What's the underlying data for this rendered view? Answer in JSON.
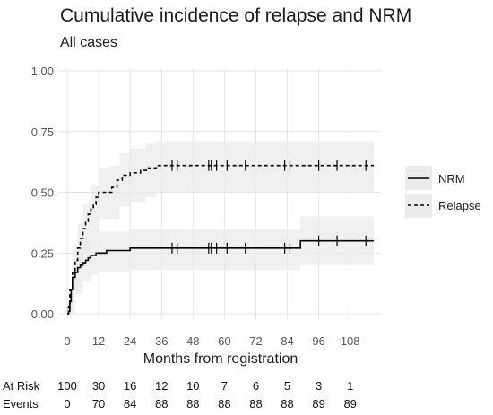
{
  "chart_data": {
    "type": "line",
    "title": "Cumulative incidence of relapse and NRM",
    "subtitle": "All cases",
    "xlabel": "Months from registration",
    "ylabel": "",
    "xlim": [
      0,
      117
    ],
    "ylim": [
      0,
      1
    ],
    "x_ticks": [
      "0",
      "12",
      "24",
      "36",
      "48",
      "60",
      "72",
      "84",
      "96",
      "108"
    ],
    "y_ticks": [
      "0.00",
      "0.25",
      "0.50",
      "0.75",
      "1.00"
    ],
    "grid": true,
    "legend_position": "right",
    "series": [
      {
        "name": "NRM",
        "linestyle": "solid",
        "color": "#000000",
        "band_color": "#ebebeb",
        "steps": [
          [
            0,
            0
          ],
          [
            0.5,
            0.01
          ],
          [
            1,
            0.05
          ],
          [
            1.5,
            0.1
          ],
          [
            2,
            0.15
          ],
          [
            3,
            0.17
          ],
          [
            4,
            0.19
          ],
          [
            5,
            0.2
          ],
          [
            6,
            0.21
          ],
          [
            7,
            0.22
          ],
          [
            8,
            0.23
          ],
          [
            9,
            0.24
          ],
          [
            11,
            0.25
          ],
          [
            15,
            0.26
          ],
          [
            24,
            0.27
          ],
          [
            88,
            0.27
          ],
          [
            89,
            0.3
          ],
          [
            117,
            0.3
          ]
        ],
        "band": [
          [
            0,
            0,
            0
          ],
          [
            1,
            0,
            0.1
          ],
          [
            3,
            0.08,
            0.26
          ],
          [
            6,
            0.13,
            0.31
          ],
          [
            9,
            0.16,
            0.33
          ],
          [
            12,
            0.17,
            0.34
          ],
          [
            24,
            0.18,
            0.35
          ],
          [
            88,
            0.18,
            0.35
          ],
          [
            89,
            0.2,
            0.4
          ],
          [
            117,
            0.2,
            0.4
          ]
        ],
        "censor_x": [
          40,
          42,
          54,
          55,
          57,
          61,
          68,
          83,
          85,
          96,
          103,
          114
        ]
      },
      {
        "name": "Relapse",
        "linestyle": "dashed",
        "color": "#000000",
        "band_color": "#ebebeb",
        "steps": [
          [
            0,
            0
          ],
          [
            0.5,
            0.03
          ],
          [
            1,
            0.1
          ],
          [
            2,
            0.17
          ],
          [
            3,
            0.22
          ],
          [
            4,
            0.27
          ],
          [
            5,
            0.31
          ],
          [
            6,
            0.35
          ],
          [
            7,
            0.38
          ],
          [
            8,
            0.41
          ],
          [
            9,
            0.43
          ],
          [
            10,
            0.45
          ],
          [
            11,
            0.48
          ],
          [
            12,
            0.5
          ],
          [
            16,
            0.5
          ],
          [
            17,
            0.52
          ],
          [
            19,
            0.55
          ],
          [
            21,
            0.57
          ],
          [
            24,
            0.58
          ],
          [
            28,
            0.59
          ],
          [
            31,
            0.6
          ],
          [
            34,
            0.61
          ],
          [
            117,
            0.61
          ]
        ],
        "band": [
          [
            0,
            0,
            0.05
          ],
          [
            2,
            0.1,
            0.28
          ],
          [
            4,
            0.18,
            0.37
          ],
          [
            6,
            0.26,
            0.45
          ],
          [
            9,
            0.33,
            0.53
          ],
          [
            12,
            0.39,
            0.6
          ],
          [
            16,
            0.39,
            0.61
          ],
          [
            20,
            0.44,
            0.66
          ],
          [
            24,
            0.46,
            0.68
          ],
          [
            30,
            0.48,
            0.7
          ],
          [
            34,
            0.5,
            0.71
          ],
          [
            117,
            0.5,
            0.71
          ]
        ],
        "censor_x": [
          40,
          42,
          54,
          55,
          57,
          61,
          68,
          83,
          85,
          96,
          103,
          114
        ]
      }
    ],
    "risk_table": {
      "labels": [
        "At Risk",
        "Events"
      ],
      "x": [
        0,
        12,
        24,
        36,
        48,
        60,
        72,
        84,
        96,
        108
      ],
      "at_risk": [
        "100",
        "30",
        "16",
        "12",
        "10",
        "7",
        "6",
        "5",
        "3",
        "1"
      ],
      "events": [
        "0",
        "70",
        "84",
        "88",
        "88",
        "88",
        "88",
        "88",
        "89",
        "89"
      ]
    }
  }
}
